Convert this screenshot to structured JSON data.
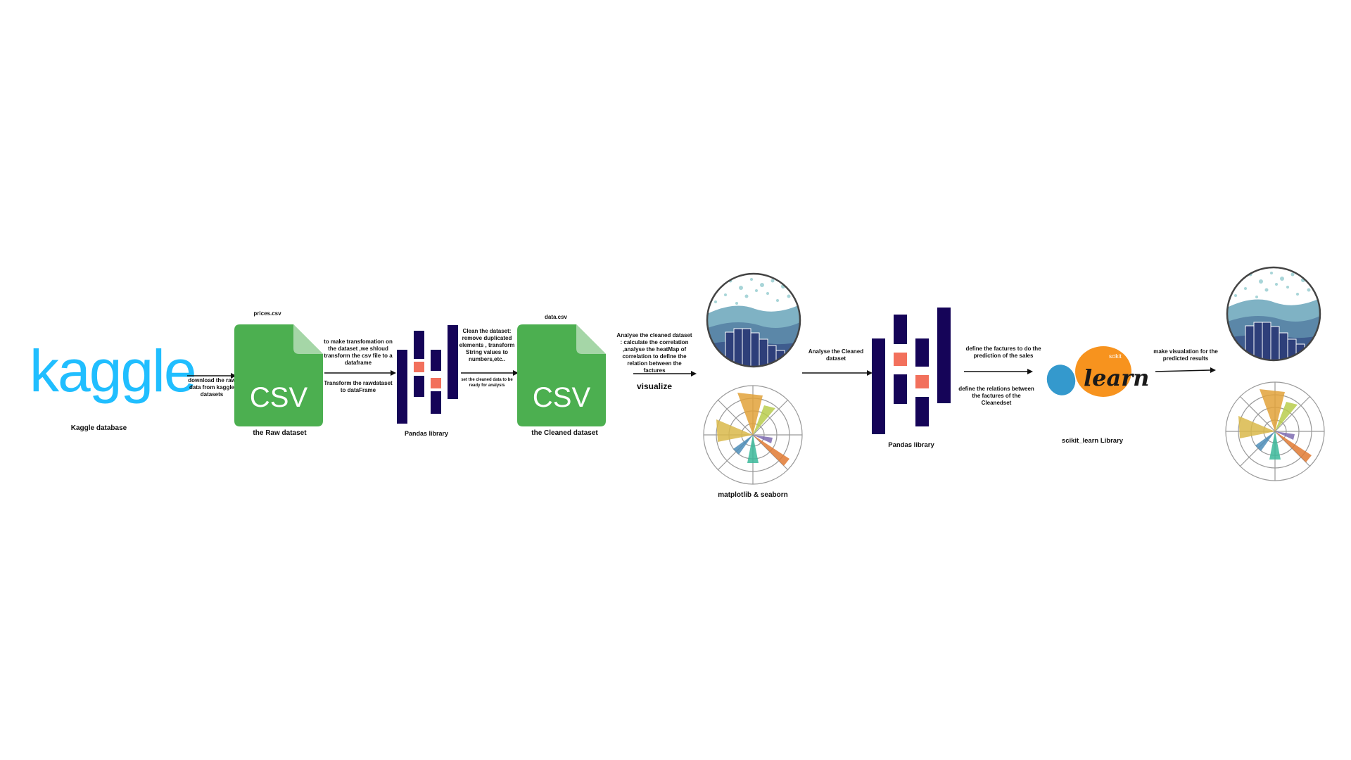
{
  "kaggle": {
    "logo_text": "kaggle",
    "caption": "Kaggle database",
    "color": "#20BEFF"
  },
  "step1": {
    "arrow_text": "download the raw data from kaggle datasets"
  },
  "raw_csv": {
    "filename": "prices.csv",
    "file_text": "CSV",
    "caption": "the Raw dataset",
    "color": "#4CAF50"
  },
  "step2": {
    "text_above": "to make transfomation on the dataset ,we shloud transform the csv file to a dataframe",
    "text_below": "Transform the rawdataset to dataFrame"
  },
  "pandas1": {
    "caption": "Pandas library",
    "bar_color": "#150458",
    "accent_color": "#E70488"
  },
  "step3": {
    "text_above": "Clean the dataset: remove duplicated elements , transform String values to numbers,etc..",
    "text_below": "set the cleaned data to be ready for analysis"
  },
  "clean_csv": {
    "filename": "data.csv",
    "file_text": "CSV",
    "caption": "the  Cleaned dataset",
    "color": "#4CAF50"
  },
  "step4": {
    "text_above": "Analyse the cleaned dataset : calculate the correlation ,analyse the heatMap of correlation to define the relation between the factures",
    "text_below": "visualize"
  },
  "viz1": {
    "caption": "matplotlib & seaborn"
  },
  "step5": {
    "text_above": "Analyse the Cleaned dataset"
  },
  "pandas2": {
    "caption": "Pandas library"
  },
  "step6": {
    "text_above": "define the factures to do the prediction of the sales",
    "text_below": "define the relations between the factures of the Cleanedset"
  },
  "sklearn": {
    "small_text": "scikit",
    "logo_text": "learn",
    "caption": "scikit_learn Library",
    "orange": "#F7931E",
    "blue": "#3499CD"
  },
  "step7": {
    "text_above": "make visualation for the predicted results"
  }
}
